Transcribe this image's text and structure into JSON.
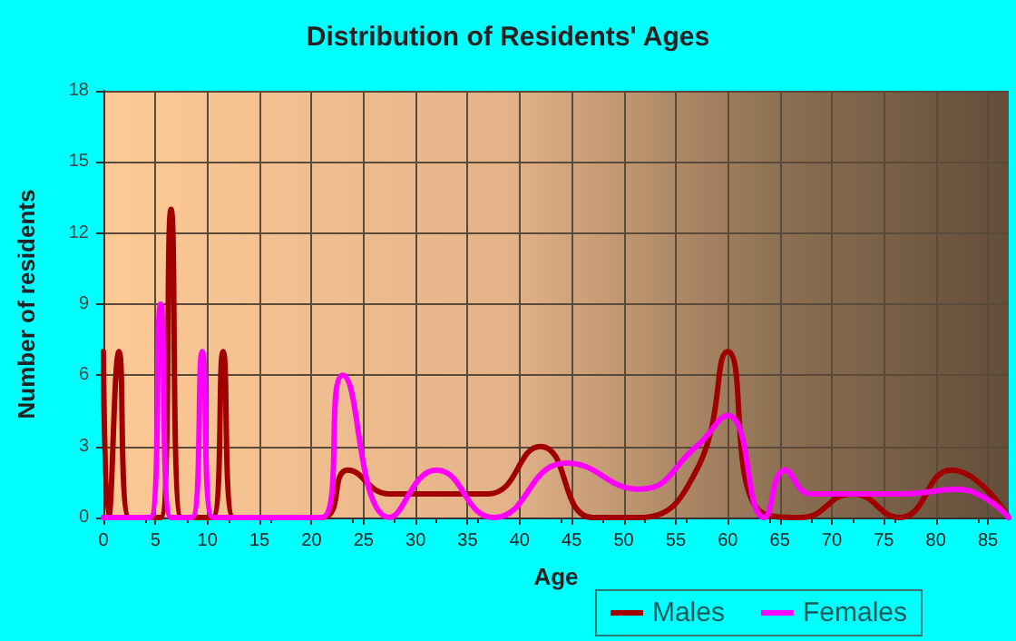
{
  "chart_data": {
    "type": "line",
    "title": "Distribution of Residents' Ages",
    "xlabel": "Age",
    "ylabel": "Number of residents",
    "xlim": [
      0,
      87
    ],
    "xticks": [
      0,
      5,
      10,
      15,
      20,
      25,
      30,
      35,
      40,
      45,
      50,
      55,
      60,
      65,
      70,
      75,
      80,
      85
    ],
    "ylim": [
      0,
      18
    ],
    "yticks": [
      0,
      3,
      6,
      9,
      12,
      15,
      18
    ],
    "grid": true,
    "legend": "bottom right",
    "marker": "none",
    "line_style": "solid",
    "series": [
      {
        "name": "Males",
        "color": "#a00000",
        "x": [
          0,
          0.5,
          1.5,
          2.5,
          5.5,
          6.5,
          7.5,
          10.5,
          11.5,
          12.5,
          21,
          23.5,
          27.5,
          32.5,
          37,
          42,
          47,
          51.5,
          57,
          60,
          63,
          67,
          72,
          76.5,
          81.5,
          87
        ],
        "values": [
          7,
          0,
          7,
          0,
          0,
          13,
          0,
          0,
          7,
          0,
          0,
          2,
          1,
          1,
          1,
          3,
          0,
          0,
          2,
          7,
          0.3,
          0,
          1,
          0,
          2,
          0
        ]
      },
      {
        "name": "Females",
        "color": "#ff00ff",
        "x": [
          0,
          4.5,
          5.5,
          6.5,
          8.5,
          9.5,
          10.5,
          21,
          23,
          27.5,
          32,
          37.5,
          44.5,
          51.5,
          57,
          60,
          63.5,
          65.5,
          68,
          77,
          82,
          87
        ],
        "values": [
          0,
          0,
          9,
          0,
          0,
          7,
          0,
          0,
          6,
          0,
          2,
          0,
          2.3,
          1.2,
          3,
          4.3,
          0,
          2,
          1,
          1,
          1.2,
          0
        ]
      }
    ]
  }
}
